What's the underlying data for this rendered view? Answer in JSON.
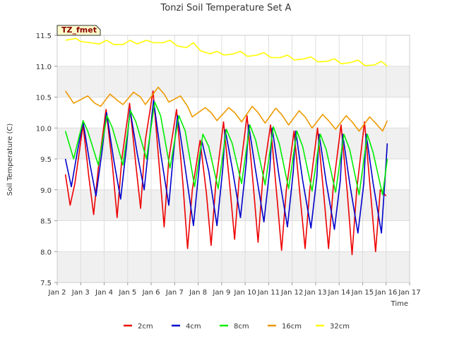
{
  "chart_data": {
    "type": "line",
    "title": "Tonzi Soil Temperature Set A",
    "xlabel": "Time",
    "ylabel": "Soil Temperature (C)",
    "badge": "TZ_fmet",
    "xlim": [
      2.0,
      17.0
    ],
    "ylim": [
      7.5,
      11.5
    ],
    "x_ticks": [
      2,
      3,
      4,
      5,
      6,
      7,
      8,
      9,
      10,
      11,
      12,
      13,
      14,
      15,
      16,
      17
    ],
    "x_tick_labels": [
      "Jan 2",
      "Jan 3",
      "Jan 4",
      "Jan 5",
      "Jan 6",
      "Jan 7",
      "Jan 8",
      "Jan 9",
      "Jan 10",
      "Jan 11",
      "Jan 12",
      "Jan 13",
      "Jan 14",
      "Jan 15",
      "Jan 16",
      "Jan 17"
    ],
    "y_ticks": [
      7.5,
      8.0,
      8.5,
      9.0,
      9.5,
      10.0,
      10.5,
      11.0,
      11.5
    ],
    "y_tick_labels": [
      "7.5",
      "8.0",
      "8.5",
      "9.0",
      "9.5",
      "10.0",
      "10.5",
      "11.0",
      "11.5"
    ],
    "grid": true,
    "legend_position": "bottom",
    "series": [
      {
        "name": "2cm",
        "color": "#ee0000",
        "x": [
          2.35,
          2.55,
          2.75,
          3.1,
          3.35,
          3.55,
          3.75,
          4.08,
          4.35,
          4.55,
          4.75,
          5.08,
          5.35,
          5.55,
          5.75,
          6.08,
          6.35,
          6.55,
          6.75,
          7.08,
          7.35,
          7.55,
          7.75,
          8.08,
          8.35,
          8.55,
          8.75,
          9.08,
          9.35,
          9.55,
          9.75,
          10.08,
          10.35,
          10.55,
          10.75,
          11.08,
          11.35,
          11.55,
          11.75,
          12.08,
          12.35,
          12.55,
          12.75,
          13.08,
          13.35,
          13.55,
          13.75,
          14.08,
          14.35,
          14.55,
          14.75,
          15.08,
          15.35,
          15.55,
          15.75,
          16.0
        ],
        "y": [
          9.25,
          8.75,
          9.1,
          10.05,
          9.2,
          8.6,
          9.35,
          10.3,
          9.4,
          8.55,
          9.5,
          10.4,
          9.4,
          8.7,
          9.8,
          10.6,
          9.35,
          8.4,
          9.5,
          10.3,
          9.1,
          8.05,
          9.0,
          9.8,
          8.95,
          8.1,
          9.1,
          10.1,
          9.05,
          8.2,
          9.2,
          10.2,
          9.05,
          8.15,
          9.2,
          10.05,
          8.9,
          8.02,
          9.0,
          9.95,
          8.85,
          8.05,
          9.0,
          10.0,
          8.9,
          8.05,
          9.05,
          10.05,
          8.95,
          7.95,
          9.0,
          10.1,
          8.9,
          8.0,
          9.0,
          8.9
        ]
      },
      {
        "name": "4cm",
        "color": "#0000cc",
        "x": [
          2.35,
          2.6,
          2.85,
          3.1,
          3.4,
          3.65,
          3.9,
          4.1,
          4.4,
          4.7,
          4.95,
          5.1,
          5.4,
          5.7,
          5.95,
          6.1,
          6.4,
          6.75,
          6.95,
          7.12,
          7.45,
          7.8,
          8.05,
          8.15,
          8.45,
          8.8,
          9.05,
          9.15,
          9.45,
          9.8,
          10.05,
          10.15,
          10.45,
          10.8,
          11.05,
          11.15,
          11.45,
          11.8,
          12.05,
          12.15,
          12.45,
          12.8,
          13.05,
          13.15,
          13.45,
          13.8,
          14.05,
          14.15,
          14.45,
          14.8,
          15.05,
          15.15,
          15.45,
          15.8,
          16.05
        ],
        "y": [
          9.5,
          9.05,
          9.6,
          10.1,
          9.4,
          8.9,
          9.6,
          10.25,
          9.5,
          8.85,
          9.7,
          10.3,
          9.6,
          9.0,
          9.9,
          10.45,
          9.6,
          8.75,
          9.6,
          10.2,
          9.35,
          8.42,
          9.4,
          9.8,
          9.3,
          8.42,
          9.35,
          9.97,
          9.35,
          8.55,
          9.45,
          10.05,
          9.3,
          8.48,
          9.35,
          10.0,
          9.2,
          8.4,
          9.3,
          9.95,
          9.15,
          8.38,
          9.2,
          9.9,
          9.12,
          8.36,
          9.15,
          9.9,
          9.1,
          8.3,
          9.1,
          9.9,
          9.1,
          8.3,
          9.75
        ]
      },
      {
        "name": "8cm",
        "color": "#00ee00",
        "x": [
          2.35,
          2.7,
          3.1,
          3.3,
          3.75,
          4.12,
          4.35,
          4.8,
          5.12,
          5.35,
          5.8,
          6.15,
          6.4,
          6.8,
          7.18,
          7.45,
          7.85,
          8.2,
          8.45,
          8.85,
          9.2,
          9.45,
          9.85,
          10.2,
          10.45,
          10.85,
          11.2,
          11.45,
          11.85,
          12.2,
          12.45,
          12.85,
          13.2,
          13.45,
          13.85,
          14.2,
          14.45,
          14.85,
          15.2,
          15.45,
          15.85,
          16.05
        ],
        "y": [
          9.95,
          9.5,
          10.12,
          9.95,
          9.4,
          10.2,
          10.0,
          9.4,
          10.28,
          10.1,
          9.5,
          10.42,
          10.2,
          9.35,
          10.2,
          9.95,
          9.05,
          9.9,
          9.7,
          9.02,
          9.98,
          9.75,
          9.1,
          10.05,
          9.8,
          9.08,
          10.02,
          9.75,
          9.02,
          9.95,
          9.7,
          8.98,
          9.9,
          9.65,
          8.96,
          9.9,
          9.65,
          8.92,
          9.9,
          9.6,
          8.92,
          9.5
        ]
      },
      {
        "name": "16cm",
        "color": "#ee9900",
        "x": [
          2.35,
          2.7,
          2.95,
          3.3,
          3.6,
          3.85,
          4.25,
          4.55,
          4.8,
          5.25,
          5.55,
          5.75,
          6.3,
          6.55,
          6.75,
          7.25,
          7.55,
          7.75,
          8.3,
          8.55,
          8.8,
          9.3,
          9.55,
          9.85,
          10.3,
          10.55,
          10.85,
          11.3,
          11.55,
          11.85,
          12.3,
          12.55,
          12.85,
          13.3,
          13.55,
          13.85,
          14.3,
          14.55,
          14.85,
          15.3,
          15.55,
          15.85,
          16.05
        ],
        "y": [
          10.6,
          10.4,
          10.45,
          10.52,
          10.4,
          10.35,
          10.55,
          10.45,
          10.38,
          10.58,
          10.5,
          10.38,
          10.66,
          10.55,
          10.42,
          10.52,
          10.35,
          10.18,
          10.33,
          10.25,
          10.12,
          10.33,
          10.25,
          10.1,
          10.35,
          10.25,
          10.08,
          10.32,
          10.22,
          10.05,
          10.28,
          10.18,
          10.0,
          10.22,
          10.12,
          9.98,
          10.2,
          10.1,
          9.95,
          10.18,
          10.08,
          9.95,
          10.12
        ]
      },
      {
        "name": "32cm",
        "color": "#ffff00",
        "x": [
          2.35,
          2.8,
          3.0,
          3.4,
          3.8,
          4.1,
          4.4,
          4.8,
          5.1,
          5.4,
          5.8,
          6.1,
          6.5,
          6.8,
          7.1,
          7.5,
          7.8,
          8.1,
          8.5,
          8.8,
          9.1,
          9.5,
          9.8,
          10.1,
          10.5,
          10.8,
          11.1,
          11.5,
          11.8,
          12.1,
          12.5,
          12.8,
          13.1,
          13.5,
          13.8,
          14.1,
          14.5,
          14.8,
          15.1,
          15.5,
          15.8,
          16.05
        ],
        "y": [
          11.42,
          11.45,
          11.4,
          11.38,
          11.36,
          11.42,
          11.35,
          11.35,
          11.42,
          11.36,
          11.42,
          11.38,
          11.38,
          11.42,
          11.33,
          11.3,
          11.38,
          11.25,
          11.2,
          11.24,
          11.18,
          11.2,
          11.24,
          11.16,
          11.18,
          11.22,
          11.14,
          11.14,
          11.18,
          11.1,
          11.12,
          11.15,
          11.07,
          11.08,
          11.12,
          11.04,
          11.06,
          11.1,
          11.01,
          11.02,
          11.08,
          11.0
        ]
      }
    ]
  }
}
